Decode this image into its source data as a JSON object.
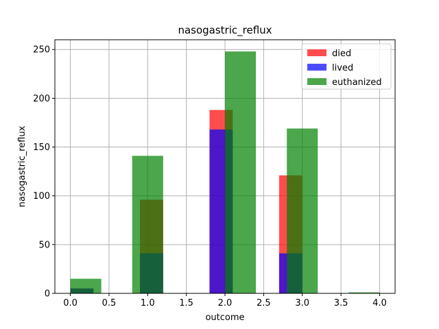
{
  "chart_data": {
    "type": "bar",
    "title": "nasogastric_reflux",
    "xlabel": "outcome",
    "ylabel": "nasogastric_reflux",
    "xlim": [
      -0.2,
      4.2
    ],
    "ylim": [
      0,
      260
    ],
    "xticks": [
      "0.0",
      "0.5",
      "1.0",
      "1.5",
      "2.0",
      "2.5",
      "3.0",
      "3.5",
      "4.0"
    ],
    "yticks": [
      "0",
      "50",
      "100",
      "150",
      "200",
      "250"
    ],
    "grid": true,
    "legend_position": "top-right",
    "series": [
      {
        "name": "died",
        "color": "#ff0000",
        "bars": [
          {
            "x0": 0.0,
            "x1": 0.3,
            "value": 5
          },
          {
            "x0": 0.9,
            "x1": 1.2,
            "value": 96
          },
          {
            "x0": 1.8,
            "x1": 2.1,
            "value": 188
          },
          {
            "x0": 2.7,
            "x1": 3.0,
            "value": 121
          }
        ]
      },
      {
        "name": "lived",
        "color": "#0000ff",
        "bars": [
          {
            "x0": 0.0,
            "x1": 0.3,
            "value": 5
          },
          {
            "x0": 0.9,
            "x1": 1.2,
            "value": 41
          },
          {
            "x0": 1.8,
            "x1": 2.1,
            "value": 168
          },
          {
            "x0": 2.7,
            "x1": 3.0,
            "value": 41
          }
        ]
      },
      {
        "name": "euthanized",
        "color": "#008000",
        "bars": [
          {
            "x0": 0.0,
            "x1": 0.4,
            "value": 15
          },
          {
            "x0": 0.8,
            "x1": 1.2,
            "value": 141
          },
          {
            "x0": 1.2,
            "x1": 1.6,
            "value": 0
          },
          {
            "x0": 2.0,
            "x1": 2.4,
            "value": 248
          },
          {
            "x0": 2.8,
            "x1": 3.2,
            "value": 169
          },
          {
            "x0": 3.6,
            "x1": 4.0,
            "value": 1
          }
        ]
      }
    ]
  }
}
